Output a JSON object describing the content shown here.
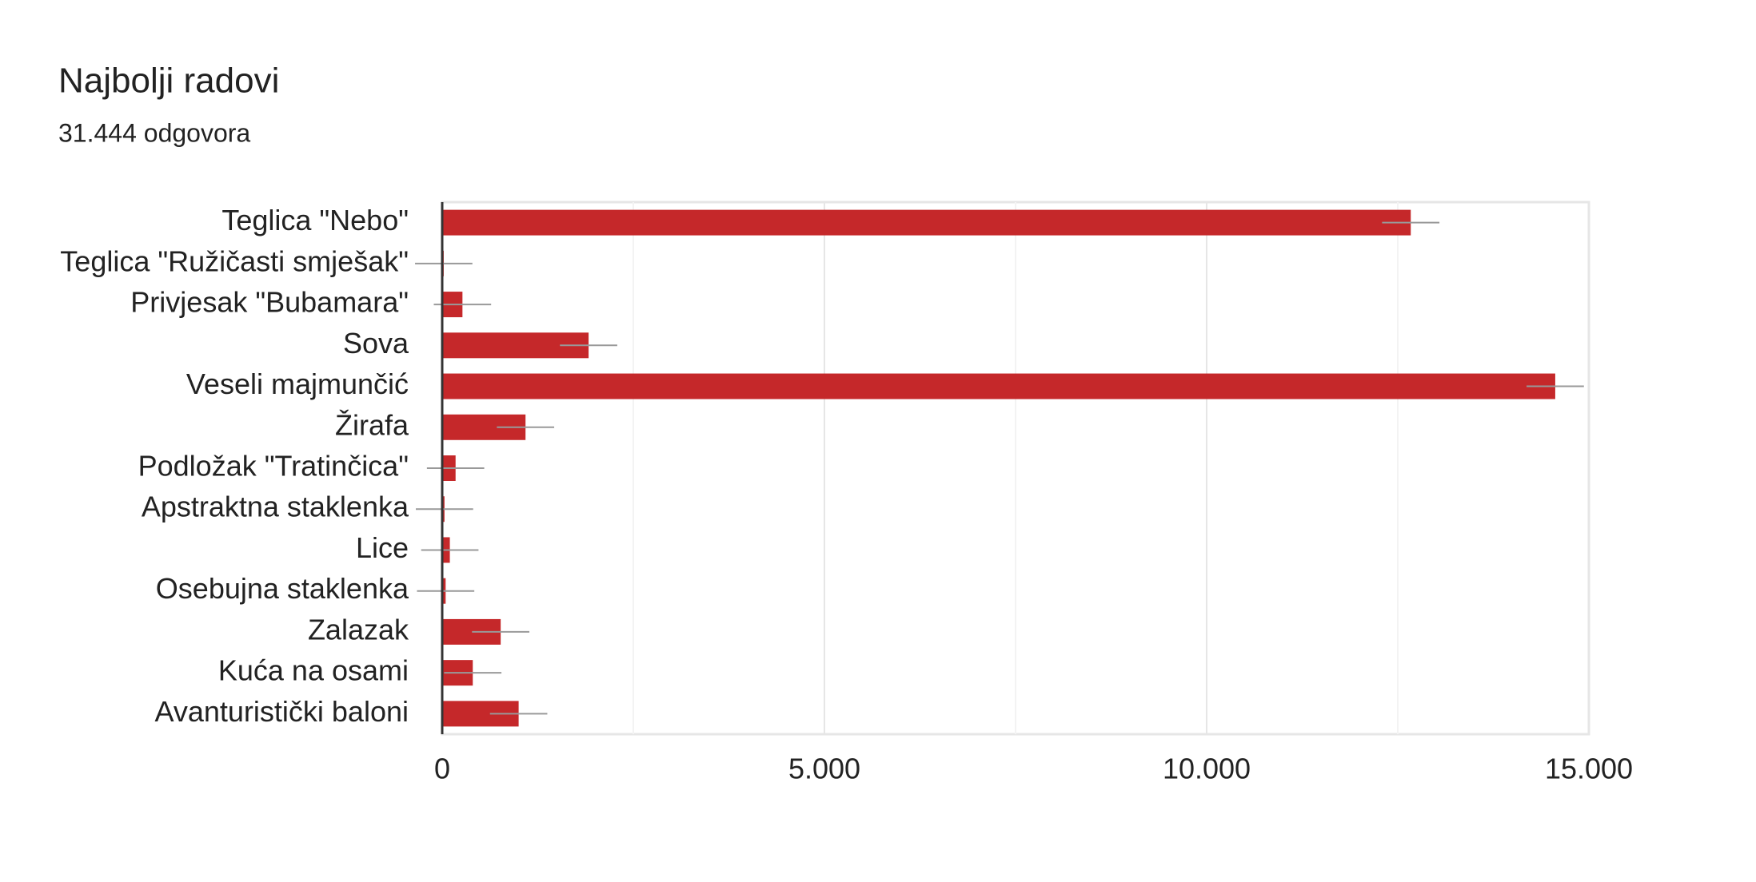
{
  "chart_data": {
    "type": "bar",
    "orientation": "horizontal",
    "title": "Najbolji radovi",
    "subtitle": "31.444 odgovora",
    "categories": [
      "Teglica \"Nebo\"",
      "Teglica \"Ružičasti smješak\"",
      "Privjesak \"Bubamara\"",
      "Sova",
      "Veseli majmunčić",
      "Žirafa",
      "Podložak \"Tratinčica\"",
      "Apstraktna staklenka",
      "Lice",
      "Osebujna staklenka",
      "Zalazak",
      "Kuća na osami",
      "Avanturistički baloni"
    ],
    "values": [
      12670,
      20,
      265,
      1915,
      14560,
      1090,
      175,
      30,
      100,
      45,
      765,
      400,
      1000
    ],
    "errors": [
      375,
      375,
      375,
      375,
      375,
      375,
      375,
      375,
      375,
      375,
      375,
      375,
      375
    ],
    "color": "#c5282a",
    "error_color": "#999999",
    "xlim": [
      0,
      15000
    ],
    "xticks": [
      0,
      {
        "value": 5000,
        "label": "5.000"
      },
      {
        "value": 10000,
        "label": "10.000"
      },
      {
        "value": 15000,
        "label": "15.000"
      }
    ],
    "minor_xticks": [
      2500,
      7500,
      12500
    ],
    "grid": true
  }
}
